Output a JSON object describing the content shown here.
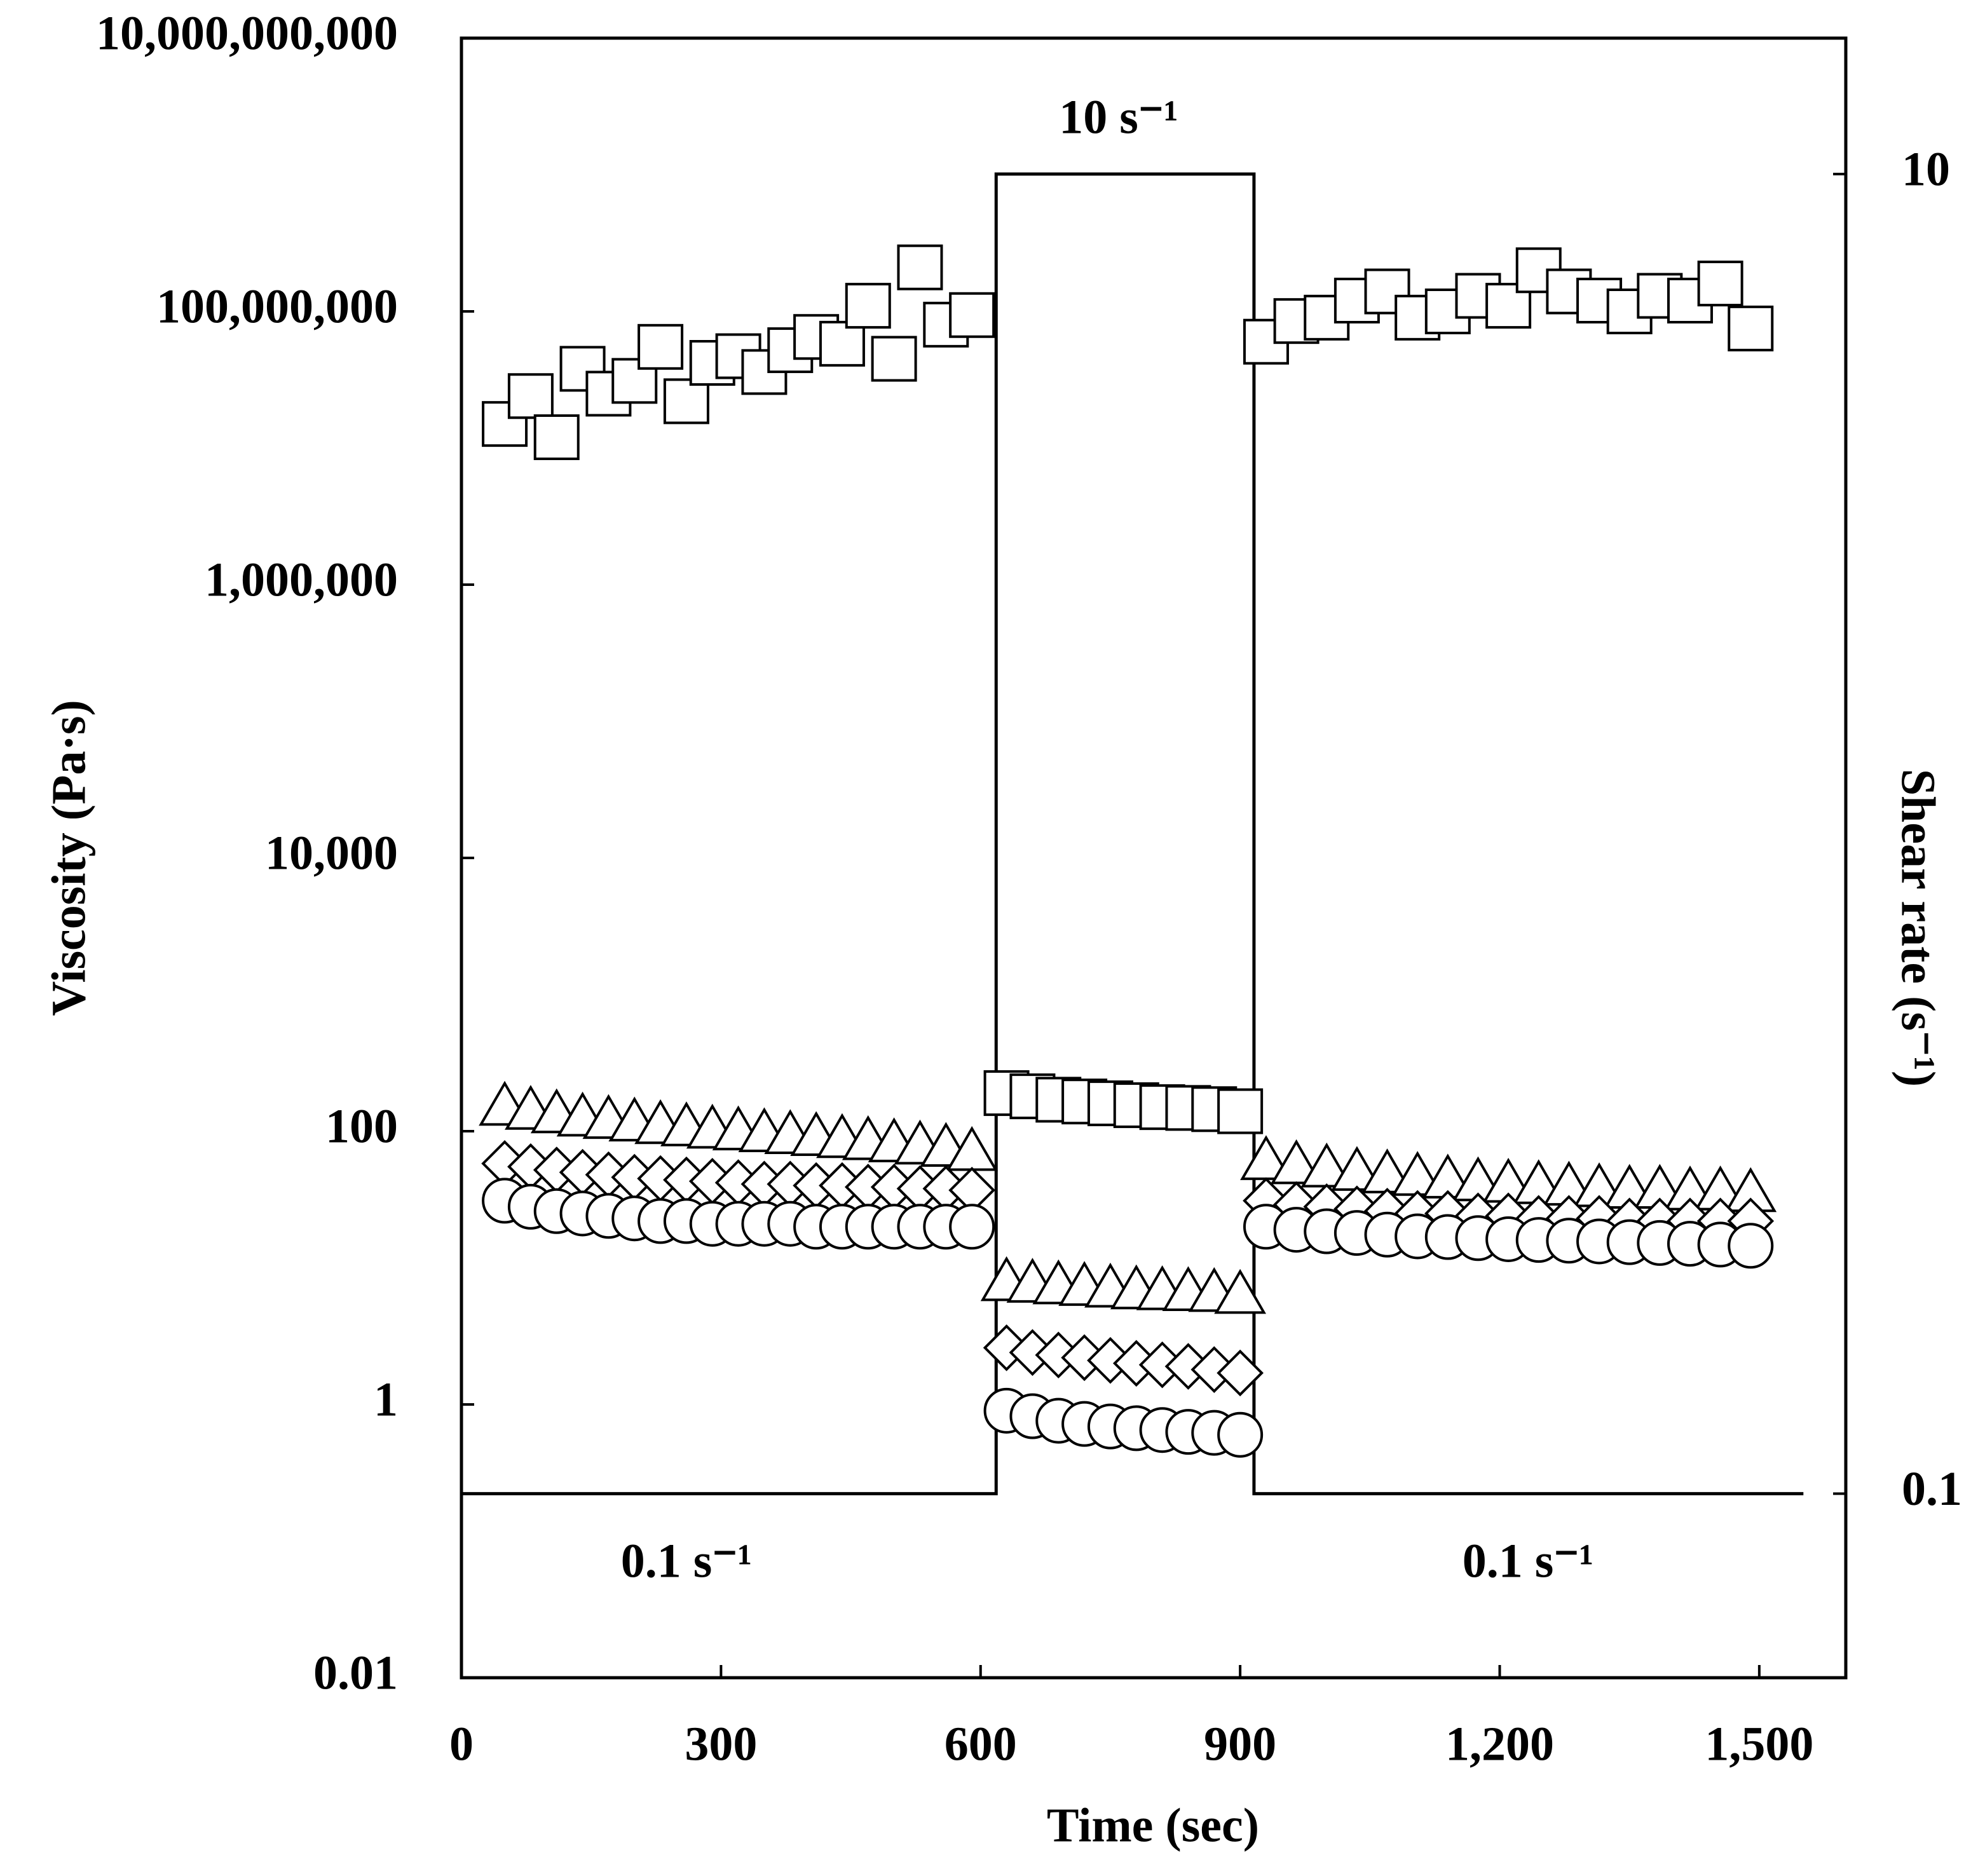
{
  "chart_data": {
    "type": "scatter",
    "xlabel": "Time (sec)",
    "ylabel": "Viscosity (Pa·s)",
    "y2label": "Shear rate (s⁻¹)",
    "annotations": [
      "10 s⁻¹",
      "0.1 s⁻¹",
      "0.1 s⁻¹"
    ],
    "xlim": [
      0,
      1600
    ],
    "xticks": [
      0,
      300,
      600,
      900,
      {
        "value": 1200,
        "label": "1,200"
      },
      {
        "value": 1500,
        "label": "1,500"
      }
    ],
    "ylim": [
      0.01,
      10000000000
    ],
    "ylog": true,
    "yticks": [
      0.01,
      1,
      100,
      {
        "value": 10000,
        "label": "10,000"
      },
      {
        "value": 1000000,
        "label": "1,000,000"
      },
      {
        "value": 100000000,
        "label": "100,000,000"
      },
      {
        "value": 10000000000,
        "label": "10,000,000,000"
      }
    ],
    "y2lim": [
      0.0526,
      16.07
    ],
    "y2log": true,
    "y2ticks": [
      0.1,
      10
    ],
    "x": [
      50,
      80,
      110,
      140,
      170,
      200,
      230,
      260,
      290,
      320,
      350,
      380,
      410,
      440,
      470,
      500,
      530,
      560,
      590,
      630,
      660,
      690,
      720,
      750,
      780,
      810,
      840,
      870,
      900,
      930,
      965,
      1000,
      1035,
      1070,
      1105,
      1140,
      1175,
      1210,
      1245,
      1280,
      1315,
      1350,
      1385,
      1420,
      1455,
      1490
    ],
    "series": [
      {
        "marker": "square",
        "color": "#000000",
        "values": [
          15000000,
          24000000,
          12000000,
          38000000,
          25000000,
          31000000,
          55000000,
          22000000,
          42000000,
          47000000,
          36000000,
          52000000,
          65000000,
          58000000,
          110000000,
          45000000,
          210000000,
          80000000,
          94000000,
          190,
          180,
          170,
          165,
          160,
          155,
          150,
          148,
          145,
          140,
          60000000,
          85000000,
          90000000,
          120000000,
          140000000,
          90000000,
          100000000,
          130000000,
          110000000,
          200000000,
          140000000,
          120000000,
          100000000,
          130000000,
          120000000,
          160000000,
          75000000
        ]
      },
      {
        "marker": "triangle",
        "color": "#000000",
        "values": [
          150,
          140,
          132,
          125,
          120,
          115,
          110,
          106,
          102,
          99,
          96,
          93,
          90,
          87,
          84,
          81,
          78,
          75,
          70,
          7.8,
          7.6,
          7.4,
          7.2,
          7.0,
          6.8,
          6.7,
          6.6,
          6.5,
          6.3,
          60,
          56,
          53,
          50,
          48,
          46,
          44,
          42,
          41,
          40,
          39,
          38,
          37,
          37,
          36,
          36,
          35
        ]
      },
      {
        "marker": "diamond",
        "color": "#000000",
        "values": [
          58,
          55,
          52,
          50,
          48,
          46,
          45,
          44,
          43,
          42,
          41,
          41,
          40,
          40,
          39,
          39,
          38,
          38,
          37,
          2.6,
          2.4,
          2.3,
          2.2,
          2.1,
          2.0,
          1.95,
          1.9,
          1.8,
          1.7,
          31,
          29,
          28,
          27,
          26,
          25,
          25,
          24,
          24,
          23,
          23,
          23,
          22,
          22,
          22,
          22,
          22
        ]
      },
      {
        "marker": "circle",
        "color": "#000000",
        "values": [
          31,
          28,
          26,
          25,
          24,
          23,
          22,
          22,
          21,
          21,
          21,
          21,
          20,
          20,
          20,
          20,
          20,
          20,
          20,
          0.9,
          0.82,
          0.76,
          0.72,
          0.69,
          0.67,
          0.65,
          0.63,
          0.62,
          0.6,
          20,
          19,
          18.5,
          18,
          17.5,
          17,
          16.8,
          16.5,
          16.2,
          16,
          15.8,
          15.6,
          15.4,
          15.2,
          15,
          14.8,
          14.5
        ]
      },
      {
        "marker": "line",
        "axis": "y2",
        "color": "#000000",
        "x": [
          0,
          618,
          618,
          916,
          916,
          1551
        ],
        "values": [
          0.1,
          0.1,
          10,
          10,
          0.1,
          0.1
        ]
      }
    ]
  }
}
